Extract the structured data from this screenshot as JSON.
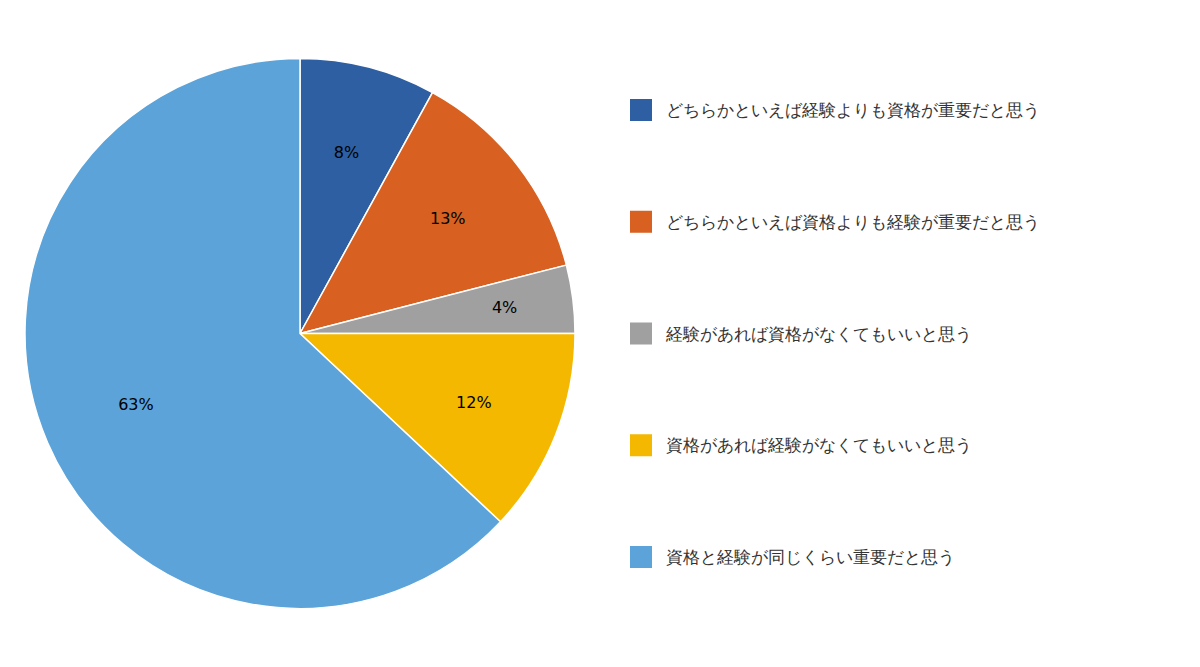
{
  "chart_data": {
    "type": "pie",
    "categories": [
      "どちらかといえば経験よりも資格が重要だと思う",
      "どちらかといえば資格よりも経験が重要だと思う",
      "経験があれば資格がなくてもいいと思う",
      "資格があれば経験がなくてもいいと思う",
      "資格と経験が同じくらい重要だと思う"
    ],
    "values": [
      8,
      13,
      4,
      12,
      63
    ],
    "value_labels": [
      "8%",
      "13%",
      "4%",
      "12%",
      "63%"
    ],
    "colors": [
      "#2E5FA3",
      "#D86020",
      "#A0A0A0",
      "#F5B800",
      "#5BA3D9"
    ],
    "data_labels": true,
    "legend": "right"
  }
}
